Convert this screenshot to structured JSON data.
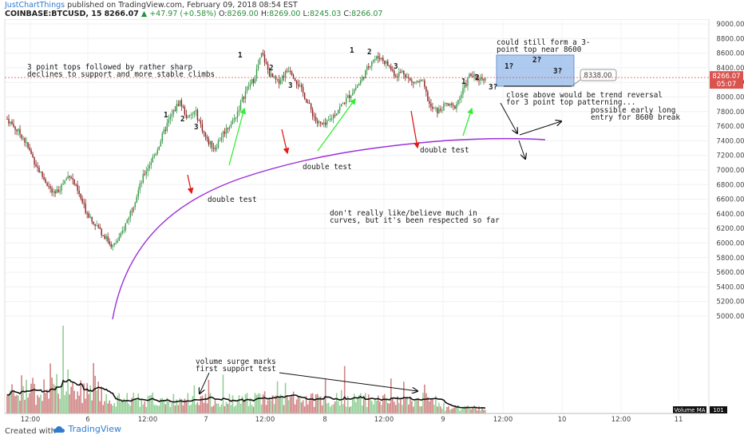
{
  "header": {
    "author": "JustChartThings",
    "published": "published on TradingView.com, February 09, 2018 08:54 EST",
    "symbol": "COINBASE:BTCUSD, 15",
    "last": "8266.07",
    "change": "▲ +47.97 (+0.58%)",
    "open_label": "O:",
    "open": "8269.00",
    "high_label": "H:",
    "high": "8269.00",
    "low_label": "L:",
    "low": "8245.03",
    "close_label": "C:",
    "close": "8266.07"
  },
  "footer": {
    "created_with": "Created with",
    "brand": "TradingView"
  },
  "colors": {
    "up": "#3a9a4a",
    "down": "#8a2020",
    "curve": "#9b30d9",
    "price_tag": "#d9534f",
    "box": "#8db3e8",
    "green_arrow": "#33ee33",
    "red_arrow": "#e01c1c"
  },
  "chart_data": {
    "type": "candlestick",
    "symbol": "COINBASE:BTCUSD",
    "interval": "15",
    "y_axis": {
      "min": 4900,
      "max": 9100,
      "ticks": [
        5000,
        5200,
        5400,
        5600,
        5800,
        6000,
        6200,
        6400,
        6600,
        6800,
        7000,
        7200,
        7400,
        7600,
        7800,
        8000,
        8200,
        8400,
        8600,
        8800,
        9000
      ],
      "position": "right"
    },
    "x_ticks": [
      "12:00",
      "6",
      "12:00",
      "7",
      "12:00",
      "8",
      "12:00",
      "9",
      "12:00",
      "10",
      "12:00",
      "11"
    ],
    "price_path": [
      [
        0,
        7700
      ],
      [
        4,
        7450
      ],
      [
        8,
        7000
      ],
      [
        12,
        6650
      ],
      [
        16,
        6950
      ],
      [
        20,
        6450
      ],
      [
        24,
        6150
      ],
      [
        27,
        5950
      ],
      [
        29,
        6100
      ],
      [
        32,
        6500
      ],
      [
        35,
        6950
      ],
      [
        38,
        7250
      ],
      [
        41,
        7650
      ],
      [
        44,
        7950
      ],
      [
        46,
        7700
      ],
      [
        48,
        7800
      ],
      [
        51,
        7400
      ],
      [
        53,
        7300
      ],
      [
        55,
        7500
      ],
      [
        58,
        7700
      ],
      [
        61,
        8100
      ],
      [
        63,
        8250
      ],
      [
        65,
        8600
      ],
      [
        67,
        8300
      ],
      [
        69,
        8200
      ],
      [
        72,
        8400
      ],
      [
        74,
        8200
      ],
      [
        76,
        8000
      ],
      [
        79,
        7650
      ],
      [
        81,
        7600
      ],
      [
        84,
        7800
      ],
      [
        87,
        8000
      ],
      [
        90,
        8200
      ],
      [
        93,
        8500
      ],
      [
        95,
        8550
      ],
      [
        97,
        8450
      ],
      [
        99,
        8300
      ],
      [
        101,
        8350
      ],
      [
        103,
        8200
      ],
      [
        106,
        8200
      ],
      [
        108,
        7850
      ],
      [
        110,
        7800
      ],
      [
        112,
        7900
      ],
      [
        114,
        7850
      ],
      [
        116,
        8050
      ],
      [
        118,
        8300
      ],
      [
        120,
        8250
      ],
      [
        122,
        8266.07
      ]
    ],
    "current_price": "8266.07",
    "countdown": "05:07",
    "target_label": "8338.00",
    "volume": {
      "label": "Volume MA",
      "value": "101"
    },
    "annotations": [
      "3 point tops followed by rather sharp",
      "declines to support and more stable climbs",
      "double test",
      "double test",
      "double test",
      "don't really like/believe much in",
      "curves, but it's been respected so far",
      "could still form a 3-",
      "point top near 8600",
      "close above would be trend reversal",
      "for 3 point top patterning...",
      "possible early long",
      "entry for 8600 break",
      "volume surge marks",
      "first support test"
    ],
    "point_labels": [
      "1",
      "2",
      "3",
      "1",
      "2",
      "3",
      "1",
      "2",
      "3",
      "1",
      "2",
      "3?",
      "1?",
      "2?",
      "3?"
    ]
  }
}
